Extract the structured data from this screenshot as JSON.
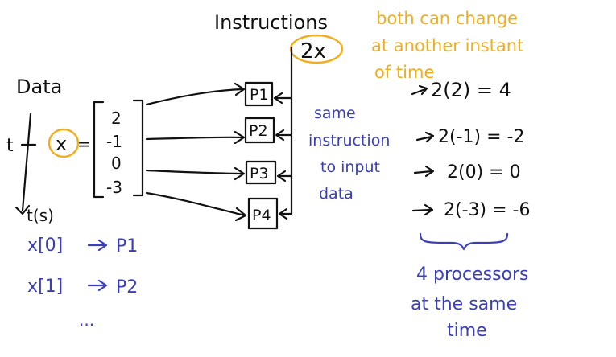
{
  "labels": {
    "instructions": "Instructions",
    "instruction_value": "2x",
    "data": "Data",
    "t": "t",
    "x": "x",
    "equals": "=",
    "t_of_s": "t(s)",
    "change_note": [
      "both can change",
      "at another instant",
      "of time"
    ],
    "same_instruction": [
      "same",
      "instruction",
      "to input",
      "data"
    ],
    "processors_note": [
      "4 processors",
      "at the same",
      "time"
    ]
  },
  "vector": [
    "2",
    "-1",
    "0",
    "-3"
  ],
  "processors": [
    "P1",
    "P2",
    "P3",
    "P4"
  ],
  "results": [
    "2(2) = 4",
    "2(-1) = -2",
    "2(0) = 0",
    "2(-3) = -6"
  ],
  "mapping": [
    {
      "input": "x[0]",
      "processor": "P1"
    },
    {
      "input": "x[1]",
      "processor": "P2"
    }
  ],
  "ellipsis": "...",
  "colors": {
    "ink": "#111111",
    "blue": "#3a3fb8",
    "orange": "#f2ad1c"
  }
}
